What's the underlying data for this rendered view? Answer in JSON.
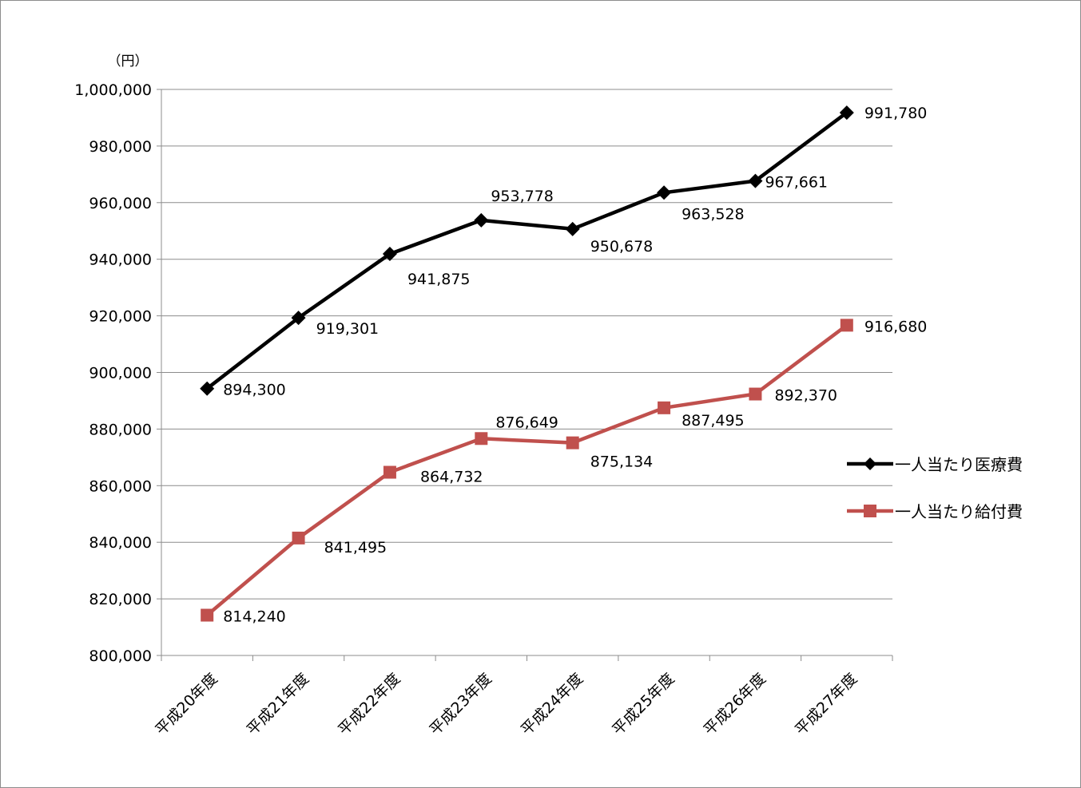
{
  "chart_data": {
    "type": "line",
    "y_unit": "（円）",
    "categories": [
      "平成20年度",
      "平成21年度",
      "平成22年度",
      "平成23年度",
      "平成24年度",
      "平成25年度",
      "平成26年度",
      "平成27年度"
    ],
    "ylim": [
      800000,
      1000000
    ],
    "y_ticks": [
      800000,
      820000,
      840000,
      860000,
      880000,
      900000,
      920000,
      940000,
      960000,
      980000,
      1000000
    ],
    "y_tick_labels": [
      "800,000",
      "820,000",
      "840,000",
      "860,000",
      "880,000",
      "900,000",
      "920,000",
      "940,000",
      "960,000",
      "980,000",
      "1,000,000"
    ],
    "grid": true,
    "legend_position": "right",
    "series": [
      {
        "name": "一人当たり医療費",
        "color": "#000000",
        "marker": "diamond",
        "values": [
          894300,
          919301,
          941875,
          953778,
          950678,
          963528,
          967661,
          991780
        ],
        "labels": [
          "894,300",
          "919,301",
          "941,875",
          "953,778",
          "950,678",
          "963,528",
          "967,661",
          "991,780"
        ]
      },
      {
        "name": "一人当たり給付費",
        "color": "#c0504d",
        "marker": "square",
        "values": [
          814240,
          841495,
          864732,
          876649,
          875134,
          887495,
          892370,
          916680
        ],
        "labels": [
          "814,240",
          "841,495",
          "864,732",
          "876,649",
          "875,134",
          "887,495",
          "892,370",
          "916,680"
        ]
      }
    ]
  }
}
